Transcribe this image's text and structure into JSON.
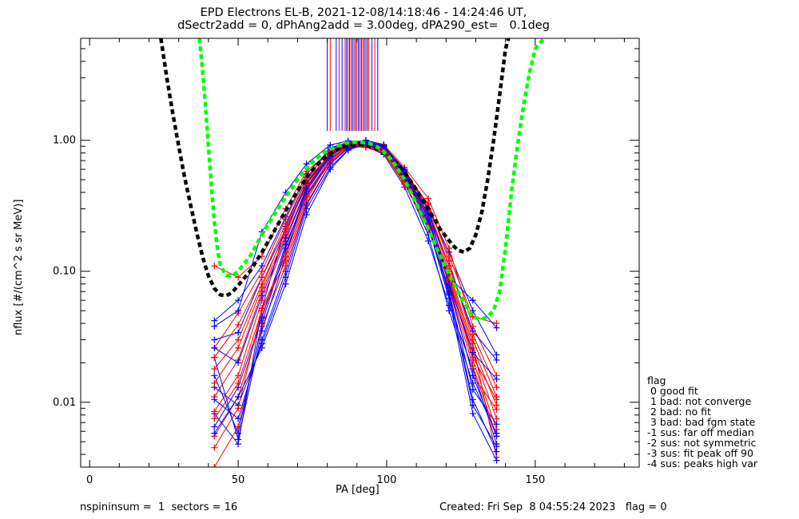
{
  "header": {
    "title_line1": "EPD Electrons EL-B, 2021-12-08/14:18:46 - 14:24:46 UT,",
    "title_line2": "dSectr2add = 0, dPhAng2add = 3.00deg, dPA290_est=   0.1deg"
  },
  "footer": {
    "left": "nspininsum =  1  sectors = 16",
    "right": "Created: Fri Sep  8 04:55:24 2023   flag = 0"
  },
  "flag_legend": {
    "title": "flag",
    "items": [
      " 0 good fit",
      " 1 bad: not converge",
      " 2 bad: no fit",
      " 3 bad: bad fgm state",
      "-1 sus: far off median",
      "-2 sus: not symmetric",
      "-3 sus: fit peak off 90",
      "-4 sus: peaks high var"
    ]
  },
  "chart_data": {
    "type": "line",
    "xlabel": "PA [deg]",
    "ylabel": "nflux [#/(cm^2 s sr MeV)]",
    "xlim": [
      -3,
      185
    ],
    "ylim": [
      0.0032,
      6.0
    ],
    "yscale": "log",
    "xticks": [
      0,
      50,
      100,
      150
    ],
    "yticks": [
      0.01,
      0.1,
      1.0
    ],
    "ytick_labels": [
      "0.01",
      "0.10",
      "1.00"
    ],
    "colors": {
      "red": "#ff0000",
      "blue": "#0000ff",
      "black": "#000000",
      "green": "#00ff00"
    },
    "pa_bins": [
      42,
      50,
      58,
      66,
      73,
      81,
      87,
      93,
      99,
      106,
      114,
      121,
      129,
      137
    ],
    "vertical_markers": {
      "color_cycle": [
        "blue",
        "red"
      ],
      "x": [
        80,
        81,
        83,
        84,
        85,
        86,
        86.5,
        87,
        87.5,
        88,
        88.5,
        89,
        89.5,
        90,
        90.5,
        91,
        91.5,
        92,
        92.5,
        93,
        93.5,
        94,
        95,
        96,
        97
      ],
      "y_from": 1.18
    },
    "series": [
      {
        "color": "red",
        "y": [
          0.0055,
          0.011,
          0.045,
          0.14,
          0.39,
          0.72,
          0.92,
          0.95,
          0.86,
          0.52,
          0.24,
          0.088,
          0.021,
          0.0062
        ]
      },
      {
        "color": "blue",
        "y": [
          0.0082,
          0.0048,
          0.052,
          0.22,
          0.5,
          0.88,
          0.95,
          0.9,
          0.78,
          0.44,
          0.17,
          0.055,
          0.018,
          0.0048
        ]
      },
      {
        "color": "red",
        "y": [
          0.018,
          0.03,
          0.08,
          0.2,
          0.46,
          0.8,
          0.98,
          0.93,
          0.82,
          0.55,
          0.33,
          0.12,
          0.03,
          0.011
        ]
      },
      {
        "color": "blue",
        "y": [
          0.013,
          0.0095,
          0.028,
          0.09,
          0.3,
          0.62,
          0.85,
          0.93,
          0.88,
          0.58,
          0.26,
          0.07,
          0.0125,
          0.0068
        ]
      },
      {
        "color": "red",
        "y": [
          0.0032,
          0.0065,
          0.038,
          0.11,
          0.33,
          0.66,
          0.89,
          0.97,
          0.91,
          0.6,
          0.29,
          0.1,
          0.028,
          0.0038
        ]
      },
      {
        "color": "blue",
        "y": [
          0.042,
          0.06,
          0.11,
          0.26,
          0.55,
          0.86,
          0.97,
          0.96,
          0.84,
          0.5,
          0.3,
          0.14,
          0.05,
          0.023
        ]
      },
      {
        "color": "red",
        "y": [
          0.0085,
          0.016,
          0.06,
          0.17,
          0.42,
          0.74,
          0.9,
          0.88,
          0.8,
          0.46,
          0.21,
          0.075,
          0.016,
          0.0088
        ]
      },
      {
        "color": "blue",
        "y": [
          0.022,
          0.0052,
          0.035,
          0.13,
          0.44,
          0.78,
          0.93,
          0.99,
          0.9,
          0.54,
          0.22,
          0.062,
          0.0082,
          0.0036
        ]
      },
      {
        "color": "red",
        "y": [
          0.026,
          0.048,
          0.1,
          0.25,
          0.52,
          0.84,
          0.96,
          1.0,
          0.93,
          0.62,
          0.36,
          0.15,
          0.038,
          0.016
        ]
      },
      {
        "color": "blue",
        "y": [
          0.0065,
          0.013,
          0.044,
          0.16,
          0.38,
          0.7,
          0.9,
          0.95,
          0.87,
          0.49,
          0.19,
          0.05,
          0.014,
          0.0058
        ]
      },
      {
        "color": "red",
        "y": [
          0.011,
          0.021,
          0.07,
          0.19,
          0.48,
          0.79,
          0.94,
          0.92,
          0.83,
          0.5,
          0.27,
          0.09,
          0.024,
          0.0075
        ]
      },
      {
        "color": "blue",
        "y": [
          0.03,
          0.034,
          0.09,
          0.21,
          0.47,
          0.8,
          0.92,
          0.91,
          0.86,
          0.53,
          0.28,
          0.11,
          0.035,
          0.021
        ]
      },
      {
        "color": "red",
        "y": [
          0.0045,
          0.009,
          0.052,
          0.13,
          0.37,
          0.68,
          0.88,
          0.94,
          0.89,
          0.57,
          0.25,
          0.08,
          0.019,
          0.0055
        ]
      },
      {
        "color": "blue",
        "y": [
          0.016,
          0.0058,
          0.04,
          0.15,
          0.41,
          0.75,
          0.95,
          1.0,
          0.92,
          0.56,
          0.23,
          0.066,
          0.0105,
          0.0042
        ]
      },
      {
        "color": "red",
        "y": [
          0.11,
          0.09,
          0.13,
          0.3,
          0.58,
          0.82,
          0.95,
          0.97,
          0.88,
          0.58,
          0.32,
          0.13,
          0.045,
          0.04
        ]
      },
      {
        "color": "blue",
        "y": [
          0.038,
          0.05,
          0.2,
          0.4,
          0.66,
          0.92,
          0.99,
          0.95,
          0.82,
          0.51,
          0.24,
          0.09,
          0.06,
          0.037
        ]
      },
      {
        "color": "red",
        "y": [
          0.0075,
          0.014,
          0.05,
          0.12,
          0.35,
          0.71,
          0.9,
          0.9,
          0.84,
          0.48,
          0.26,
          0.095,
          0.026,
          0.0095
        ]
      },
      {
        "color": "blue",
        "y": [
          0.0105,
          0.0075,
          0.03,
          0.1,
          0.32,
          0.66,
          0.87,
          0.92,
          0.9,
          0.6,
          0.3,
          0.078,
          0.016,
          0.0055
        ]
      },
      {
        "color": "red",
        "y": [
          0.022,
          0.039,
          0.09,
          0.23,
          0.5,
          0.77,
          0.92,
          0.95,
          0.87,
          0.53,
          0.3,
          0.11,
          0.033,
          0.013
        ]
      },
      {
        "color": "blue",
        "y": [
          0.0058,
          0.011,
          0.026,
          0.08,
          0.27,
          0.6,
          0.84,
          0.94,
          0.91,
          0.59,
          0.27,
          0.068,
          0.0095,
          0.0046
        ]
      },
      {
        "color": "red",
        "y": [
          0.014,
          0.026,
          0.075,
          0.21,
          0.44,
          0.81,
          0.93,
          0.9,
          0.81,
          0.47,
          0.22,
          0.085,
          0.022,
          0.0105
        ]
      },
      {
        "color": "blue",
        "y": [
          0.026,
          0.02,
          0.065,
          0.18,
          0.43,
          0.76,
          0.92,
          0.97,
          0.89,
          0.55,
          0.25,
          0.08,
          0.024,
          0.015
        ]
      }
    ],
    "model_curves": [
      {
        "color": "black",
        "style": "dashed",
        "points": [
          [
            24,
            6.0
          ],
          [
            26,
            3.0
          ],
          [
            28,
            1.6
          ],
          [
            30,
            0.9
          ],
          [
            32,
            0.52
          ],
          [
            34,
            0.32
          ],
          [
            36,
            0.2
          ],
          [
            38,
            0.13
          ],
          [
            40,
            0.092
          ],
          [
            42,
            0.074
          ],
          [
            44,
            0.066
          ],
          [
            46,
            0.065
          ],
          [
            48,
            0.069
          ],
          [
            50,
            0.078
          ],
          [
            54,
            0.1
          ],
          [
            58,
            0.14
          ],
          [
            62,
            0.2
          ],
          [
            66,
            0.29
          ],
          [
            70,
            0.41
          ],
          [
            74,
            0.56
          ],
          [
            78,
            0.7
          ],
          [
            82,
            0.82
          ],
          [
            86,
            0.9
          ],
          [
            90,
            0.93
          ],
          [
            94,
            0.91
          ],
          [
            98,
            0.84
          ],
          [
            102,
            0.72
          ],
          [
            106,
            0.57
          ],
          [
            110,
            0.42
          ],
          [
            114,
            0.3
          ],
          [
            118,
            0.21
          ],
          [
            122,
            0.16
          ],
          [
            124,
            0.145
          ],
          [
            126,
            0.14
          ],
          [
            128,
            0.15
          ],
          [
            130,
            0.19
          ],
          [
            132,
            0.28
          ],
          [
            134,
            0.5
          ],
          [
            136,
            1.0
          ],
          [
            138,
            2.2
          ],
          [
            140,
            5.0
          ],
          [
            141,
            6.0
          ]
        ]
      },
      {
        "color": "green",
        "style": "dashed",
        "points": [
          [
            37,
            6.0
          ],
          [
            38,
            3.5
          ],
          [
            39,
            1.8
          ],
          [
            40,
            0.9
          ],
          [
            41,
            0.45
          ],
          [
            42,
            0.24
          ],
          [
            43,
            0.15
          ],
          [
            44,
            0.11
          ],
          [
            46,
            0.093
          ],
          [
            48,
            0.092
          ],
          [
            50,
            0.1
          ],
          [
            54,
            0.13
          ],
          [
            58,
            0.19
          ],
          [
            62,
            0.27
          ],
          [
            66,
            0.37
          ],
          [
            70,
            0.5
          ],
          [
            74,
            0.65
          ],
          [
            78,
            0.78
          ],
          [
            82,
            0.88
          ],
          [
            86,
            0.95
          ],
          [
            90,
            0.97
          ],
          [
            94,
            0.95
          ],
          [
            98,
            0.86
          ],
          [
            102,
            0.7
          ],
          [
            106,
            0.5
          ],
          [
            110,
            0.33
          ],
          [
            114,
            0.21
          ],
          [
            118,
            0.13
          ],
          [
            122,
            0.085
          ],
          [
            126,
            0.058
          ],
          [
            128,
            0.048
          ],
          [
            130,
            0.044
          ],
          [
            132,
            0.043
          ],
          [
            134,
            0.045
          ],
          [
            136,
            0.05
          ],
          [
            138,
            0.07
          ],
          [
            140,
            0.15
          ],
          [
            142,
            0.4
          ],
          [
            144,
            0.9
          ],
          [
            146,
            1.8
          ],
          [
            148,
            3.2
          ],
          [
            150,
            5.0
          ],
          [
            153,
            6.0
          ]
        ]
      }
    ]
  }
}
